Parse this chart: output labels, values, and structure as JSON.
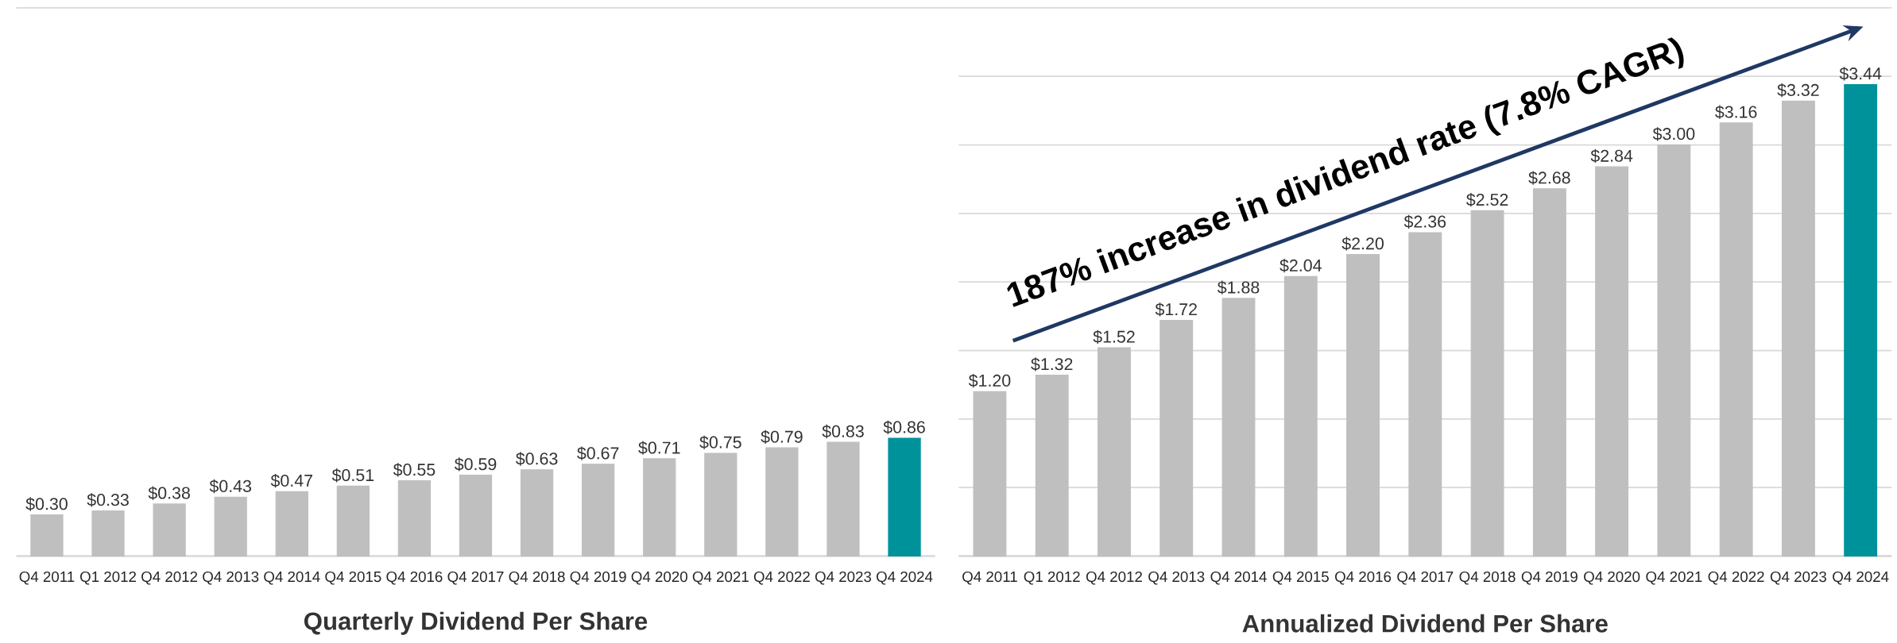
{
  "chart_data": [
    {
      "type": "bar",
      "xlabel": "Quarterly Dividend Per Share",
      "categories": [
        "Q4 2011",
        "Q1 2012",
        "Q4 2012",
        "Q4 2013",
        "Q4 2014",
        "Q4 2015",
        "Q4 2016",
        "Q4 2017",
        "Q4 2018",
        "Q4 2019",
        "Q4 2020",
        "Q4 2021",
        "Q4 2022",
        "Q4 2023",
        "Q4 2024"
      ],
      "values": [
        0.3,
        0.33,
        0.38,
        0.43,
        0.47,
        0.51,
        0.55,
        0.59,
        0.63,
        0.67,
        0.71,
        0.75,
        0.79,
        0.83,
        0.86
      ],
      "value_labels": [
        "$0.30",
        "$0.33",
        "$0.38",
        "$0.43",
        "$0.47",
        "$0.51",
        "$0.55",
        "$0.59",
        "$0.63",
        "$0.67",
        "$0.71",
        "$0.75",
        "$0.79",
        "$0.83",
        "$0.86"
      ],
      "colors": [
        "#bfbfbf",
        "#bfbfbf",
        "#bfbfbf",
        "#bfbfbf",
        "#bfbfbf",
        "#bfbfbf",
        "#bfbfbf",
        "#bfbfbf",
        "#bfbfbf",
        "#bfbfbf",
        "#bfbfbf",
        "#bfbfbf",
        "#bfbfbf",
        "#bfbfbf",
        "#00929b"
      ],
      "tick_labels": "x"
    },
    {
      "type": "bar",
      "xlabel": "Annualized Dividend Per Share",
      "categories": [
        "Q4 2011",
        "Q1 2012",
        "Q4 2012",
        "Q4 2013",
        "Q4 2014",
        "Q4 2015",
        "Q4 2016",
        "Q4 2017",
        "Q4 2018",
        "Q4 2019",
        "Q4 2020",
        "Q4 2021",
        "Q4 2022",
        "Q4 2023",
        "Q4 2024"
      ],
      "values": [
        1.2,
        1.32,
        1.52,
        1.72,
        1.88,
        2.04,
        2.2,
        2.36,
        2.52,
        2.68,
        2.84,
        3.0,
        3.16,
        3.32,
        3.44
      ],
      "value_labels": [
        "$1.20",
        "$1.32",
        "$1.52",
        "$1.72",
        "$1.88",
        "$2.04",
        "$2.20",
        "$2.36",
        "$2.52",
        "$2.68",
        "$2.84",
        "$3.00",
        "$3.16",
        "$3.32",
        "$3.44"
      ],
      "colors": [
        "#bfbfbf",
        "#bfbfbf",
        "#bfbfbf",
        "#bfbfbf",
        "#bfbfbf",
        "#bfbfbf",
        "#bfbfbf",
        "#bfbfbf",
        "#bfbfbf",
        "#bfbfbf",
        "#bfbfbf",
        "#bfbfbf",
        "#bfbfbf",
        "#bfbfbf",
        "#00929b"
      ],
      "grid": "y",
      "tick_labels": "x",
      "annotations": [
        "187% increase in dividend rate (7.8% CAGR)"
      ]
    }
  ]
}
